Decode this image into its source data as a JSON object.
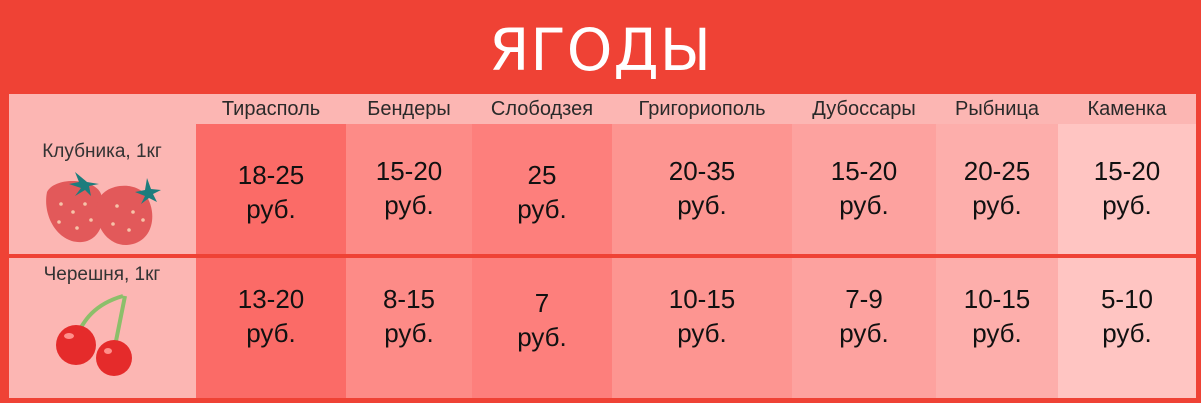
{
  "title": "ЯГОДЫ",
  "columns": [
    "Тирасполь",
    "Бендеры",
    "Слободзея",
    "Григориополь",
    "Дубоссары",
    "Рыбница",
    "Каменка"
  ],
  "rows": [
    {
      "label": "Клубника, 1кг",
      "icon": "strawberry-icon",
      "cells": [
        {
          "value": "18-25",
          "unit": "руб."
        },
        {
          "value": "15-20",
          "unit": "руб."
        },
        {
          "value": "25",
          "unit": "руб."
        },
        {
          "value": "20-35",
          "unit": "руб."
        },
        {
          "value": "15-20",
          "unit": "руб."
        },
        {
          "value": "20-25",
          "unit": "руб."
        },
        {
          "value": "15-20",
          "unit": "руб."
        }
      ]
    },
    {
      "label": "Черешня, 1кг",
      "icon": "cherry-icon",
      "cells": [
        {
          "value": "13-20",
          "unit": "руб."
        },
        {
          "value": "8-15",
          "unit": "руб."
        },
        {
          "value": "7",
          "unit": "руб."
        },
        {
          "value": "10-15",
          "unit": "руб."
        },
        {
          "value": "7-9",
          "unit": "руб."
        },
        {
          "value": "10-15",
          "unit": "руб."
        },
        {
          "value": "5-10",
          "unit": "руб."
        }
      ]
    }
  ],
  "colors": {
    "frame": "#ef4235",
    "column_fills": [
      "#fb6b67",
      "#fd8b87",
      "#fd7f7c",
      "#fd9591",
      "#fda29f",
      "#fdaeab",
      "#ffc5c2"
    ]
  }
}
